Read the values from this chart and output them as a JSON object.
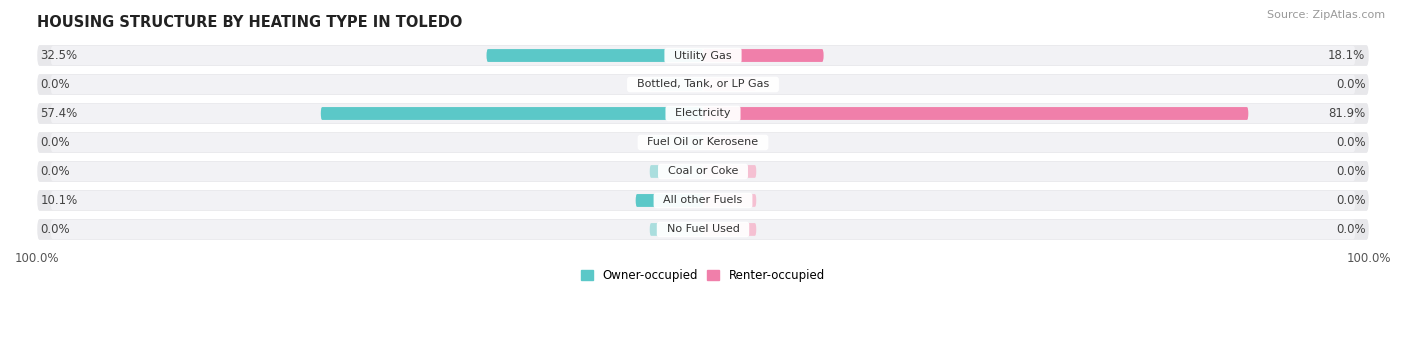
{
  "title": "HOUSING STRUCTURE BY HEATING TYPE IN TOLEDO",
  "source": "Source: ZipAtlas.com",
  "categories": [
    "Utility Gas",
    "Bottled, Tank, or LP Gas",
    "Electricity",
    "Fuel Oil or Kerosene",
    "Coal or Coke",
    "All other Fuels",
    "No Fuel Used"
  ],
  "owner_values": [
    32.5,
    0.0,
    57.4,
    0.0,
    0.0,
    10.1,
    0.0
  ],
  "renter_values": [
    18.1,
    0.0,
    81.9,
    0.0,
    0.0,
    0.0,
    0.0
  ],
  "owner_color": "#5BC8C8",
  "owner_color_light": "#AADEDE",
  "renter_color": "#F07FAA",
  "renter_color_light": "#F5C0D2",
  "row_bg_color": "#e8e8eb",
  "row_inner_color": "#f2f2f5",
  "legend_owner": "Owner-occupied",
  "legend_renter": "Renter-occupied",
  "title_fontsize": 10.5,
  "label_fontsize": 8.5,
  "category_fontsize": 8,
  "source_fontsize": 8,
  "xlim": 100.0,
  "min_bar_width": 8.0
}
